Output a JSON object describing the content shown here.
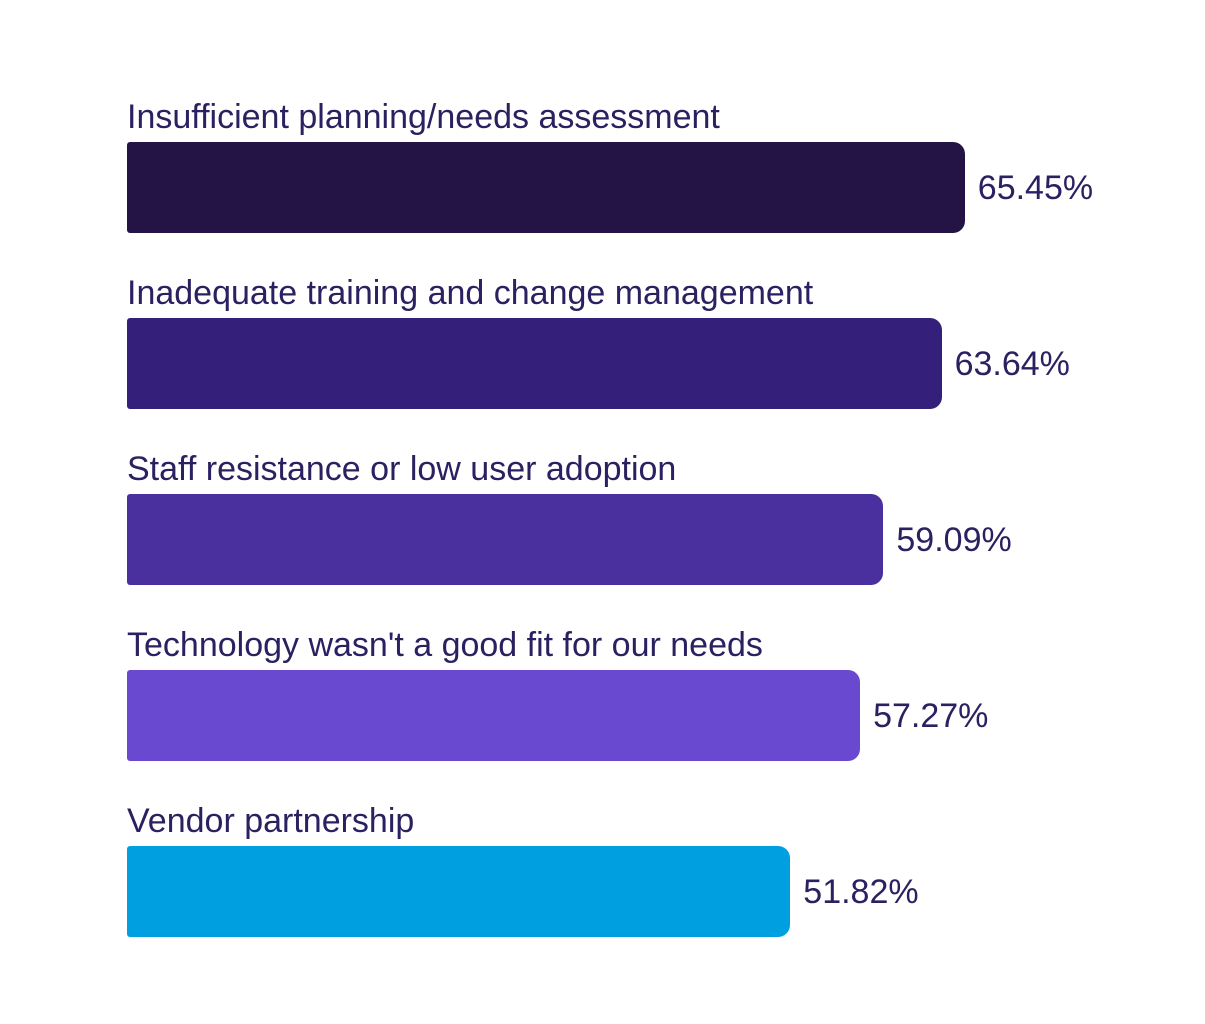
{
  "chart_data": {
    "type": "bar",
    "orientation": "horizontal",
    "title": "",
    "xlabel": "",
    "ylabel": "",
    "grid": false,
    "legend": false,
    "xlim": [
      0,
      100
    ],
    "categories": [
      "Insufficient planning/needs assessment",
      "Inadequate training and change management",
      "Staff resistance or low user adoption",
      "Technology wasn't a good fit for our needs",
      "Vendor partnership"
    ],
    "values": [
      65.45,
      63.64,
      59.09,
      57.27,
      51.82
    ],
    "value_labels": [
      "65.45%",
      "63.64%",
      "59.09%",
      "57.27%",
      "51.82%"
    ],
    "bar_colors": [
      "#241446",
      "#34207a",
      "#4a309e",
      "#6a49d1",
      "#00a0e0"
    ],
    "text_color": "#2b2160"
  }
}
